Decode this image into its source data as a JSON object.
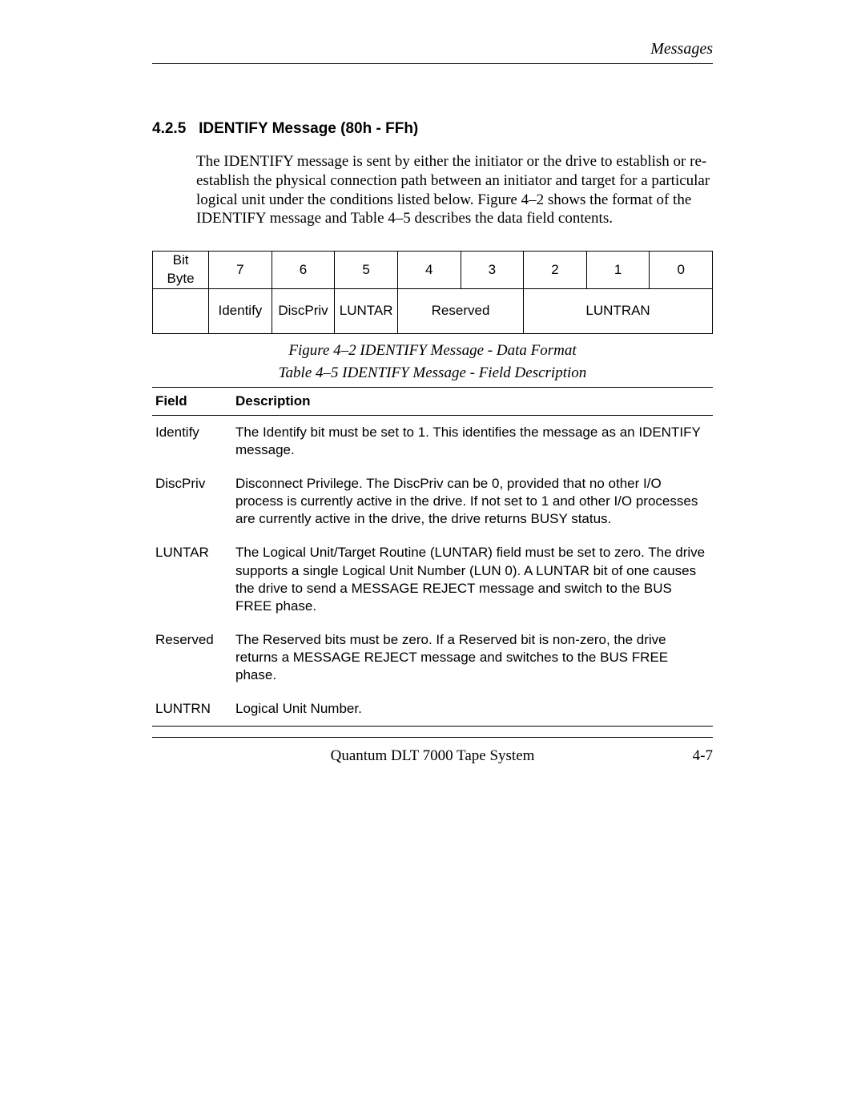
{
  "header": {
    "running_title": "Messages"
  },
  "section": {
    "number": "4.2.5",
    "title": "IDENTIFY Message  (80h - FFh)",
    "paragraph": "The IDENTIFY message is sent by either the initiator or the drive to establish or re-establish the physical connection path between an initiator and target for a particular logical unit under the conditions listed below. Figure 4–2 shows the format of the IDENTIFY message and Table 4–5 describes the data field contents."
  },
  "format_table": {
    "row_label_top": "Bit",
    "row_label_bottom": "Byte",
    "bit_numbers": [
      "7",
      "6",
      "5",
      "4",
      "3",
      "2",
      "1",
      "0"
    ],
    "fields": {
      "identify": "Identify",
      "discpriv": "DiscPriv",
      "luntar": "LUNTAR",
      "reserved": "Reserved",
      "luntran": "LUNTRAN"
    },
    "border_color": "#000000",
    "font_family_sans": "Helvetica",
    "cell_fontsize": 17
  },
  "figure_caption": "Figure 4–2  IDENTIFY Message - Data Format",
  "table_caption": "Table 4–5  IDENTIFY Message - Field Description",
  "desc_table": {
    "columns": [
      "Field",
      "Description"
    ],
    "rows": [
      {
        "field": "Identify",
        "desc": "The Identify bit must be set to 1. This identifies the message as an IDENTIFY message."
      },
      {
        "field": "DiscPriv",
        "desc": "Disconnect Privilege. The DiscPriv can be 0, provided that no other I/O process is currently active in the drive. If not set to 1 and other I/O processes are currently active in the drive, the drive returns BUSY status."
      },
      {
        "field": "LUNTAR",
        "desc": "The Logical Unit/Target Routine (LUNTAR) field must be set to zero. The drive supports a single Logical Unit Number (LUN 0). A LUNTAR bit of one causes the drive to send a MESSAGE REJECT message and switch to the BUS FREE phase."
      },
      {
        "field": "Reserved",
        "desc": "The Reserved bits must be zero. If a Reserved bit is non-zero, the drive returns a MESSAGE REJECT message and switches to the BUS FREE phase."
      },
      {
        "field": "LUNTRN",
        "desc": "Logical Unit Number."
      }
    ],
    "header_fontweight": 700,
    "row_fontsize": 17
  },
  "footer": {
    "center": "Quantum DLT 7000 Tape System",
    "pagenum": "4-7"
  },
  "style": {
    "page_bg": "#ffffff",
    "text_color": "#000000",
    "rule_color": "#000000",
    "serif_family": "Times New Roman",
    "sans_family": "Helvetica",
    "body_fontsize": 19,
    "heading_fontsize": 19,
    "heading_fontweight": 700,
    "caption_fontstyle": "italic"
  }
}
